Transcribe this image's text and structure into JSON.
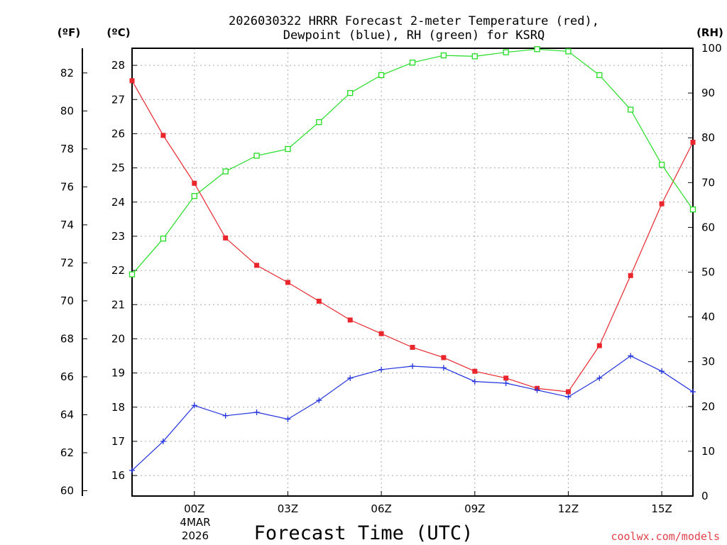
{
  "chart_data": {
    "type": "line",
    "title_line1": "2026030322 HRRR Forecast 2-meter Temperature (red),",
    "title_line2": "Dewpoint (blue), RH (green) for KSRQ",
    "xlabel": "Forecast Time (UTC)",
    "credit": "coolwx.com/models",
    "units": {
      "fahrenheit": "(ºF)",
      "celsius": "(ºC)",
      "rh": "(RH)"
    },
    "date_label": {
      "line1": "4MAR",
      "line2": "2026"
    },
    "x_hours_from_00z": [
      -2,
      -1,
      0,
      1,
      2,
      3,
      4,
      5,
      6,
      7,
      8,
      9,
      10,
      11,
      12,
      13,
      14,
      15,
      16
    ],
    "xlim_hours": [
      -2,
      16
    ],
    "x_ticks": [
      {
        "hour": 0,
        "label": "00Z"
      },
      {
        "hour": 3,
        "label": "03Z"
      },
      {
        "hour": 6,
        "label": "06Z"
      },
      {
        "hour": 9,
        "label": "09Z"
      },
      {
        "hour": 12,
        "label": "12Z"
      },
      {
        "hour": 15,
        "label": "15Z"
      }
    ],
    "celsius_axis": {
      "ylim": [
        15.4,
        28.5
      ],
      "ticks": [
        "16",
        "17",
        "18",
        "19",
        "20",
        "21",
        "22",
        "23",
        "24",
        "25",
        "26",
        "27",
        "28"
      ]
    },
    "fahrenheit_axis": {
      "ticks": [
        "60",
        "62",
        "64",
        "66",
        "68",
        "70",
        "72",
        "74",
        "76",
        "78",
        "80",
        "82"
      ]
    },
    "rh_axis": {
      "ylim": [
        0,
        100
      ],
      "ticks": [
        "0",
        "10",
        "20",
        "30",
        "40",
        "50",
        "60",
        "70",
        "80",
        "90",
        "100"
      ]
    },
    "series": [
      {
        "name": "Temperature",
        "axis": "celsius",
        "color": "#e8262c",
        "marker": "filled-square",
        "values": [
          27.55,
          25.95,
          24.55,
          22.95,
          22.15,
          21.65,
          21.1,
          20.55,
          20.15,
          19.75,
          19.45,
          19.05,
          18.85,
          18.55,
          18.45,
          19.8,
          21.85,
          23.95,
          25.75
        ]
      },
      {
        "name": "Dewpoint",
        "axis": "celsius",
        "color": "#2233dd",
        "marker": "plus",
        "values": [
          16.15,
          17.0,
          18.05,
          17.75,
          17.85,
          17.65,
          18.2,
          18.85,
          19.1,
          19.2,
          19.15,
          18.75,
          18.7,
          18.5,
          18.3,
          18.85,
          19.5,
          19.05,
          18.45
        ]
      },
      {
        "name": "Relative Humidity",
        "axis": "rh",
        "color": "#22dd22",
        "marker": "open-square",
        "values": [
          49.5,
          57.5,
          67.0,
          72.5,
          76.0,
          77.5,
          83.5,
          90.0,
          94.0,
          96.8,
          98.4,
          98.2,
          99.1,
          99.8,
          99.3,
          94.0,
          86.3,
          74.0,
          64.0
        ]
      }
    ]
  }
}
